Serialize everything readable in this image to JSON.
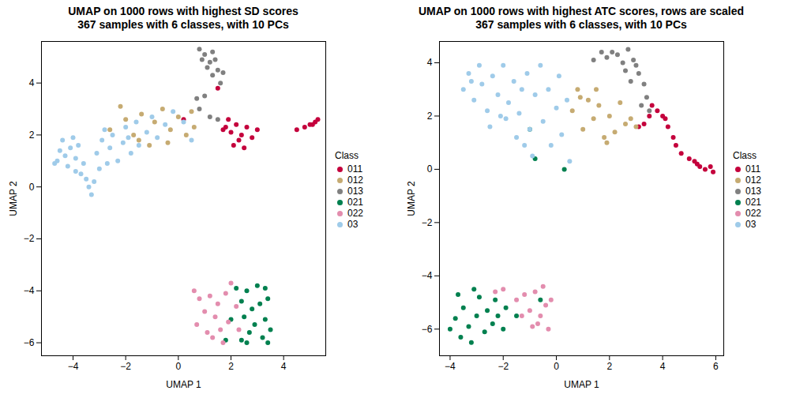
{
  "chart_data": [
    {
      "type": "scatter",
      "title": "UMAP on 1000 rows with highest SD scores",
      "subtitle": "367 samples with 6 classes, with 10 PCs",
      "x_label": "UMAP 1",
      "y_label": "UMAP 2",
      "xlim": [
        -5.2,
        5.6
      ],
      "ylim": [
        -6.5,
        5.6
      ],
      "xticks": [
        -4,
        -2,
        0,
        2,
        4
      ],
      "yticks": [
        -6,
        -4,
        -2,
        0,
        2,
        4
      ],
      "legend_title": "Class",
      "legend": "right",
      "series": [
        {
          "name": "011",
          "color": "#c4003c",
          "x": [
            1.5,
            1.8,
            2.0,
            2.2,
            2.4,
            2.6,
            2.8,
            2.1,
            2.3,
            3.0,
            1.9,
            2.5,
            4.5,
            4.8,
            5.0,
            5.2,
            5.3,
            5.1,
            0.2,
            1.7
          ],
          "y": [
            3.8,
            2.3,
            2.1,
            2.4,
            2.0,
            2.3,
            1.9,
            1.6,
            1.8,
            2.2,
            2.6,
            1.5,
            2.2,
            2.3,
            2.4,
            2.5,
            2.6,
            2.4,
            2.6,
            2.2
          ]
        },
        {
          "name": "012",
          "color": "#c6ab72",
          "x": [
            -2.6,
            -2.2,
            -2.0,
            -1.7,
            -1.4,
            -1.1,
            -0.9,
            -0.6,
            -0.3,
            0.0,
            0.3,
            0.5,
            0.6,
            -1.5,
            -0.4
          ],
          "y": [
            2.2,
            3.1,
            2.6,
            2.0,
            2.8,
            1.6,
            2.5,
            3.0,
            2.2,
            2.7,
            2.0,
            2.9,
            2.3,
            1.8,
            1.7
          ]
        },
        {
          "name": "013",
          "color": "#808080",
          "x": [
            0.8,
            0.9,
            1.0,
            1.1,
            1.2,
            1.3,
            1.4,
            1.5,
            1.6,
            1.7,
            0.7,
            0.8,
            1.0,
            1.2,
            1.5,
            1.3
          ],
          "y": [
            5.3,
            4.9,
            5.1,
            4.6,
            4.8,
            4.3,
            4.9,
            4.5,
            4.0,
            4.4,
            3.4,
            3.0,
            3.5,
            2.7,
            2.6,
            5.2
          ]
        },
        {
          "name": "021",
          "color": "#00804f",
          "x": [
            2.2,
            2.4,
            2.5,
            2.6,
            2.7,
            2.8,
            2.9,
            3.0,
            3.1,
            3.2,
            3.3,
            3.4,
            3.5,
            2.4,
            2.0,
            3.3,
            2.6,
            3.4,
            1.8
          ],
          "y": [
            -3.9,
            -4.4,
            -5.0,
            -4.0,
            -5.6,
            -4.7,
            -5.3,
            -3.8,
            -4.5,
            -5.8,
            -5.1,
            -4.3,
            -5.5,
            -5.9,
            -5.1,
            -3.9,
            -6.0,
            -6.0,
            -5.9
          ]
        },
        {
          "name": "022",
          "color": "#e38dae",
          "x": [
            0.6,
            0.8,
            1.0,
            1.2,
            1.4,
            1.5,
            1.6,
            1.8,
            1.9,
            2.0,
            2.2,
            1.1,
            1.3,
            0.7,
            1.7,
            2.3
          ],
          "y": [
            -4.0,
            -4.3,
            -4.8,
            -4.2,
            -5.0,
            -4.5,
            -5.5,
            -4.1,
            -5.2,
            -3.7,
            -4.6,
            -5.6,
            -5.8,
            -5.3,
            -6.0,
            -5.5
          ]
        },
        {
          "name": "03",
          "color": "#9fcbe9",
          "x": [
            -4.6,
            -4.5,
            -4.4,
            -4.3,
            -4.2,
            -4.1,
            -4.0,
            -3.9,
            -3.8,
            -3.7,
            -3.6,
            -3.5,
            -3.4,
            -3.3,
            -3.2,
            -3.1,
            -3.0,
            -2.9,
            -2.7,
            -2.6,
            -2.5,
            -2.3,
            -2.1,
            -2.0,
            -1.8,
            -1.6,
            -1.5,
            -1.2,
            -1.0,
            -0.8,
            -0.5,
            -0.2,
            0.2,
            0.5,
            -3.9,
            -4.7,
            -2.8,
            -1.9
          ],
          "y": [
            1.0,
            1.4,
            1.8,
            1.2,
            0.8,
            1.5,
            1.9,
            1.1,
            1.6,
            0.5,
            0.9,
            0.3,
            0.0,
            -0.3,
            0.2,
            1.3,
            0.7,
            1.8,
            0.9,
            1.5,
            2.0,
            1.0,
            1.7,
            2.3,
            1.3,
            2.5,
            1.6,
            2.1,
            2.7,
            1.9,
            2.4,
            2.9,
            2.5,
            1.8,
            0.6,
            0.9,
            2.2,
            1.9
          ]
        }
      ]
    },
    {
      "type": "scatter",
      "title": "UMAP on 1000 rows with highest ATC scores, rows are scaled",
      "subtitle": "367 samples with 6 classes, with 10 PCs",
      "x_label": "UMAP 1",
      "y_label": "UMAP 2",
      "xlim": [
        -4.4,
        6.3
      ],
      "ylim": [
        -7.0,
        4.8
      ],
      "xticks": [
        -4,
        -2,
        0,
        2,
        4,
        6
      ],
      "yticks": [
        -6,
        -4,
        -2,
        0,
        2,
        4
      ],
      "legend_title": "Class",
      "legend": "right",
      "series": [
        {
          "name": "011",
          "color": "#c4003c",
          "x": [
            3.1,
            3.3,
            3.6,
            3.8,
            4.0,
            4.2,
            4.4,
            4.5,
            4.7,
            5.0,
            5.2,
            5.4,
            5.6,
            5.8,
            5.9,
            3.5,
            4.1,
            5.3
          ],
          "y": [
            1.6,
            1.7,
            2.4,
            2.2,
            2.0,
            1.6,
            1.2,
            0.9,
            0.6,
            0.4,
            0.3,
            0.1,
            0.0,
            0.1,
            -0.1,
            2.0,
            1.9,
            0.2
          ]
        },
        {
          "name": "012",
          "color": "#c6ab72",
          "x": [
            0.6,
            0.8,
            1.0,
            1.2,
            1.4,
            1.6,
            1.8,
            2.0,
            2.2,
            2.4,
            1.5,
            0.9,
            2.6,
            2.8,
            3.0,
            1.9
          ],
          "y": [
            2.2,
            3.0,
            1.5,
            2.6,
            1.9,
            2.4,
            1.2,
            2.0,
            1.4,
            2.5,
            3.0,
            2.7,
            1.7,
            1.9,
            1.6,
            1.0
          ]
        },
        {
          "name": "013",
          "color": "#808080",
          "x": [
            1.7,
            1.9,
            2.1,
            2.3,
            2.5,
            2.7,
            2.9,
            3.1,
            3.3,
            3.4,
            3.2,
            3.0,
            2.6,
            1.4,
            2.8,
            3.5
          ],
          "y": [
            4.4,
            4.2,
            4.4,
            4.3,
            4.0,
            4.5,
            4.1,
            3.6,
            3.2,
            2.7,
            2.4,
            3.9,
            3.7,
            4.1,
            3.3,
            2.2
          ]
        },
        {
          "name": "021",
          "color": "#00804f",
          "x": [
            -0.8,
            0.3,
            -1.0,
            -4.0,
            -3.8,
            -3.6,
            -3.5,
            -3.3,
            -3.2,
            -3.0,
            -2.9,
            -2.7,
            -2.6,
            -2.4,
            -2.3,
            -2.2,
            -2.0,
            -1.9,
            -3.7,
            -1.5,
            -0.6,
            -3.1
          ],
          "y": [
            0.4,
            0.0,
            1.5,
            -6.0,
            -5.6,
            -6.3,
            -5.2,
            -5.9,
            -6.5,
            -5.5,
            -4.8,
            -6.1,
            -5.3,
            -5.8,
            -4.9,
            -5.5,
            -6.0,
            -5.2,
            -4.7,
            -5.5,
            -4.9,
            -4.5
          ]
        },
        {
          "name": "022",
          "color": "#e38dae",
          "x": [
            -1.5,
            -1.2,
            -1.0,
            -0.9,
            -0.8,
            -0.6,
            -0.5,
            -0.4,
            -0.3,
            -0.2,
            -0.7,
            -1.3,
            -2.3,
            -2.0
          ],
          "y": [
            -4.9,
            -4.7,
            -5.3,
            -5.9,
            -4.6,
            -5.5,
            -4.4,
            -5.1,
            -6.0,
            -4.9,
            -5.8,
            -5.5,
            -4.6,
            -4.5
          ]
        },
        {
          "name": "03",
          "color": "#9fcbe9",
          "x": [
            -3.5,
            -3.3,
            -3.1,
            -2.9,
            -2.8,
            -2.6,
            -2.4,
            -2.2,
            -2.0,
            -1.9,
            -1.8,
            -1.6,
            -1.5,
            -1.4,
            -1.2,
            -1.1,
            -1.0,
            -0.9,
            -0.8,
            -0.6,
            -0.5,
            -0.3,
            -0.2,
            0.0,
            0.1,
            0.2,
            0.4,
            0.5,
            -2.5,
            -3.2,
            -2.1,
            -1.3
          ],
          "y": [
            3.0,
            3.6,
            2.6,
            3.9,
            3.2,
            2.2,
            3.5,
            2.8,
            3.9,
            1.9,
            2.5,
            3.3,
            1.2,
            2.1,
            0.9,
            3.6,
            1.5,
            0.5,
            2.8,
            3.9,
            1.8,
            3.0,
            0.9,
            2.3,
            3.5,
            1.3,
            2.6,
            0.3,
            1.6,
            3.3,
            2.0,
            3.0
          ]
        }
      ]
    }
  ]
}
